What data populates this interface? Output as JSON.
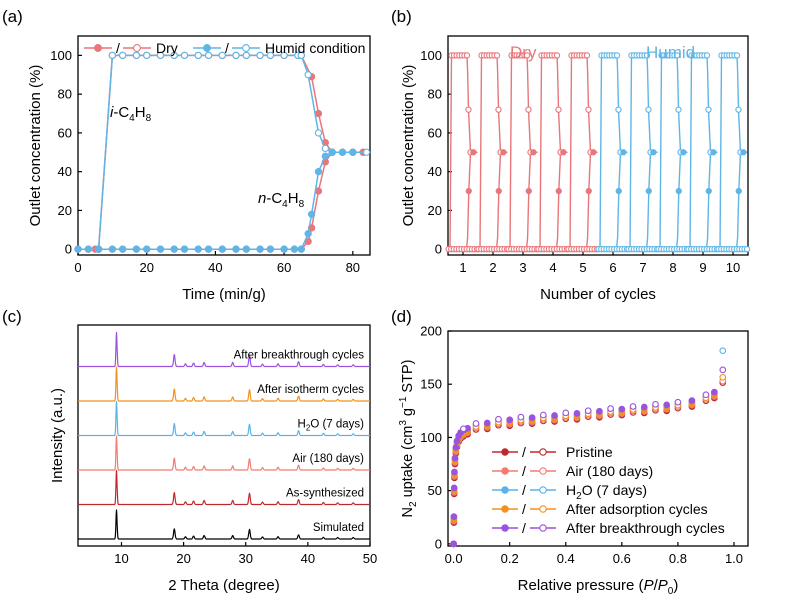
{
  "colors": {
    "dry": "#e8767a",
    "dry_dark": "#e06068",
    "humid": "#5fb5e6",
    "humid_dark": "#3a9bd8",
    "pristine": "#c0282e",
    "air": "#f07c72",
    "h2o": "#57b3ea",
    "adsorption": "#f0921e",
    "breakthrough": "#9a52e0",
    "simulated": "#000000"
  },
  "panel_labels": {
    "a": "(a)",
    "b": "(b)",
    "c": "(c)",
    "d": "(d)"
  },
  "chart_data": [
    {
      "id": "a",
      "type": "line",
      "xlabel": "Time (min/g)",
      "ylabel": "Outlet concentration (%)",
      "xlim": [
        0,
        85
      ],
      "ylim": [
        -3,
        110
      ],
      "xticks": [
        0,
        20,
        40,
        60,
        80
      ],
      "yticks": [
        0,
        20,
        40,
        60,
        80,
        100
      ],
      "legend": {
        "placement": "top",
        "slash": "/",
        "entries": [
          "Dry",
          "Humid condition"
        ]
      },
      "annotations": [
        {
          "prefix": "i",
          "main": "-C",
          "sub1": "4",
          "mid": "H",
          "sub2": "8"
        },
        {
          "prefix": "n",
          "main": "-C",
          "sub1": "4",
          "mid": "H",
          "sub2": "8"
        }
      ],
      "series": [
        {
          "name": "Dry",
          "gas": "i-C4H8",
          "color_key": "dry",
          "marker": "filled",
          "points": [
            [
              0,
              0
            ],
            [
              5,
              0
            ],
            [
              6,
              0
            ],
            [
              10,
              100
            ],
            [
              13,
              100
            ],
            [
              17,
              100
            ],
            [
              20,
              100
            ],
            [
              24,
              100
            ],
            [
              28,
              100
            ],
            [
              31,
              100
            ],
            [
              35,
              100
            ],
            [
              38,
              100
            ],
            [
              42,
              100
            ],
            [
              46,
              100
            ],
            [
              49,
              100
            ],
            [
              53,
              100
            ],
            [
              56,
              100
            ],
            [
              60,
              100
            ],
            [
              64,
              100
            ],
            [
              65,
              100
            ],
            [
              68,
              89
            ],
            [
              70,
              70
            ],
            [
              72,
              55
            ],
            [
              74,
              50
            ],
            [
              77,
              50
            ],
            [
              80,
              50
            ],
            [
              83,
              50
            ]
          ]
        },
        {
          "name": "Dry",
          "gas": "n-C4H8",
          "color_key": "dry",
          "marker": "filled",
          "points": [
            [
              0,
              0
            ],
            [
              3,
              0
            ],
            [
              6,
              0
            ],
            [
              10,
              0
            ],
            [
              13,
              0
            ],
            [
              17,
              0
            ],
            [
              20,
              0
            ],
            [
              24,
              0
            ],
            [
              28,
              0
            ],
            [
              31,
              0
            ],
            [
              35,
              0
            ],
            [
              38,
              0
            ],
            [
              42,
              0
            ],
            [
              46,
              0
            ],
            [
              49,
              0
            ],
            [
              53,
              0
            ],
            [
              56,
              0
            ],
            [
              60,
              0
            ],
            [
              63,
              0
            ],
            [
              65,
              0
            ],
            [
              67,
              4
            ],
            [
              68,
              11
            ],
            [
              70,
              30
            ],
            [
              72,
              45
            ],
            [
              74,
              50
            ],
            [
              77,
              50
            ],
            [
              80,
              50
            ],
            [
              83,
              50
            ]
          ]
        },
        {
          "name": "Humid condition",
          "gas": "i-C4H8",
          "color_key": "humid",
          "marker": "open",
          "points": [
            [
              0,
              0
            ],
            [
              6,
              0
            ],
            [
              10,
              100
            ],
            [
              13,
              100
            ],
            [
              17,
              100
            ],
            [
              20,
              100
            ],
            [
              24,
              100
            ],
            [
              28,
              100
            ],
            [
              31,
              100
            ],
            [
              35,
              100
            ],
            [
              38,
              100
            ],
            [
              42,
              100
            ],
            [
              46,
              100
            ],
            [
              49,
              100
            ],
            [
              53,
              100
            ],
            [
              56,
              100
            ],
            [
              60,
              100
            ],
            [
              64,
              100
            ],
            [
              65,
              100
            ],
            [
              67,
              90
            ],
            [
              70,
              60
            ],
            [
              72,
              52
            ],
            [
              74,
              50
            ],
            [
              77,
              50
            ],
            [
              80,
              50
            ],
            [
              84,
              50
            ]
          ]
        },
        {
          "name": "Humid condition",
          "gas": "n-C4H8",
          "color_key": "humid",
          "marker": "filled",
          "points": [
            [
              0,
              0
            ],
            [
              3,
              0
            ],
            [
              6,
              0
            ],
            [
              10,
              0
            ],
            [
              13,
              0
            ],
            [
              17,
              0
            ],
            [
              20,
              0
            ],
            [
              24,
              0
            ],
            [
              28,
              0
            ],
            [
              31,
              0
            ],
            [
              35,
              0
            ],
            [
              38,
              0
            ],
            [
              42,
              0
            ],
            [
              46,
              0
            ],
            [
              49,
              0
            ],
            [
              53,
              0
            ],
            [
              56,
              0
            ],
            [
              60,
              0
            ],
            [
              63,
              0
            ],
            [
              65,
              0
            ],
            [
              67,
              8
            ],
            [
              68,
              18
            ],
            [
              70,
              40
            ],
            [
              72,
              48
            ],
            [
              74,
              50
            ],
            [
              77,
              50
            ],
            [
              80,
              50
            ]
          ]
        }
      ]
    },
    {
      "id": "b",
      "type": "line",
      "xlabel": "Number of cycles",
      "ylabel": "Outlet concentration (%)",
      "xlim": [
        0.5,
        10.5
      ],
      "ylim": [
        -3,
        110
      ],
      "xticks": [
        1,
        2,
        3,
        4,
        5,
        6,
        7,
        8,
        9,
        10
      ],
      "yticks": [
        0,
        20,
        40,
        60,
        80,
        100
      ],
      "labels": [
        {
          "text": "Dry",
          "color_key": "dry"
        },
        {
          "text": "Humid",
          "color_key": "humid"
        }
      ],
      "cycle_profile": {
        "rise_start": 0.05,
        "rise_end": 0.1,
        "plateau_end": 0.64,
        "cross": 0.76,
        "fall_i_end": 0.88,
        "rise_n_start": 0.62,
        "plateau_pct": 100,
        "cross_pct": 50
      },
      "series": [
        {
          "name": "Dry",
          "cycles": [
            1,
            2,
            3,
            4,
            5
          ],
          "color_key": "dry"
        },
        {
          "name": "Humid",
          "cycles": [
            6,
            7,
            8,
            9,
            10
          ],
          "color_key": "humid"
        }
      ]
    },
    {
      "id": "c",
      "type": "line",
      "xlabel": "2 Theta (degree)",
      "ylabel": "Intensity (a.u.)",
      "xlim": [
        3,
        50
      ],
      "xticks": [
        10,
        20,
        30,
        40,
        50
      ],
      "peaks": [
        {
          "two_theta": 9.2,
          "rel": 1.0
        },
        {
          "two_theta": 18.5,
          "rel": 0.35
        },
        {
          "two_theta": 20.3,
          "rel": 0.08
        },
        {
          "two_theta": 21.6,
          "rel": 0.1
        },
        {
          "two_theta": 23.3,
          "rel": 0.12
        },
        {
          "two_theta": 27.9,
          "rel": 0.12
        },
        {
          "two_theta": 30.6,
          "rel": 0.33
        },
        {
          "two_theta": 32.7,
          "rel": 0.07
        },
        {
          "two_theta": 35.2,
          "rel": 0.08
        },
        {
          "two_theta": 38.5,
          "rel": 0.14
        },
        {
          "two_theta": 42.5,
          "rel": 0.06
        },
        {
          "two_theta": 44.8,
          "rel": 0.05
        },
        {
          "two_theta": 47.3,
          "rel": 0.05
        }
      ],
      "series": [
        {
          "name": "Simulated",
          "color_key": "simulated"
        },
        {
          "name": "As-synthesized",
          "color_key": "pristine"
        },
        {
          "name": "Air (180 days)",
          "color_key": "air"
        },
        {
          "name": "H2O (7 days)",
          "display_main": "H",
          "display_sub": "2",
          "display_rest": "O (7 days)",
          "color_key": "h2o"
        },
        {
          "name": "After isotherm cycles",
          "color_key": "adsorption"
        },
        {
          "name": "After breakthrough cycles",
          "color_key": "breakthrough"
        }
      ]
    },
    {
      "id": "d",
      "type": "scatter",
      "xlabel_parts": {
        "pre": "Relative pressure (",
        "italic_p": "P",
        "slash": "/",
        "italic_p0": "P",
        "sub0": "0",
        "post": ")"
      },
      "ylabel_parts": {
        "n": "N",
        "sub2": "2",
        "mid": " uptake (cm",
        "sup3": "3",
        "g": " g",
        "supm1": "−1",
        "post": " STP)"
      },
      "xlim": [
        -0.02,
        1.05
      ],
      "ylim": [
        -2,
        200
      ],
      "xticks": [
        0.0,
        0.2,
        0.4,
        0.6,
        0.8,
        1.0
      ],
      "xtick_labels": [
        "0.0",
        "0.2",
        "0.4",
        "0.6",
        "0.8",
        "1.0"
      ],
      "yticks": [
        0,
        50,
        100,
        150,
        200
      ],
      "legend": {
        "placement": "bottom-right",
        "slash": "/"
      },
      "series": [
        {
          "name": "Pristine",
          "color_key": "pristine",
          "offset": 0
        },
        {
          "name": "Air (180 days)",
          "color_key": "air",
          "offset": 1
        },
        {
          "name": "H2O (7 days)",
          "display_main": "H",
          "display_sub": "2",
          "display_rest": "O (7 days)",
          "color_key": "h2o",
          "offset": 3,
          "last": 180
        },
        {
          "name": "After adsorption cycles",
          "color_key": "adsorption",
          "offset": 2,
          "last": 155
        },
        {
          "name": "After breakthrough cycles",
          "color_key": "breakthrough",
          "offset": 4,
          "last": 162
        }
      ],
      "isotherm": [
        [
          0.0,
          0
        ],
        [
          0.001,
          20
        ],
        [
          0.002,
          47
        ],
        [
          0.003,
          62
        ],
        [
          0.005,
          75
        ],
        [
          0.008,
          85
        ],
        [
          0.012,
          91
        ],
        [
          0.018,
          96
        ],
        [
          0.025,
          99
        ],
        [
          0.035,
          101
        ],
        [
          0.05,
          103
        ],
        [
          0.08,
          106
        ],
        [
          0.12,
          108
        ],
        [
          0.16,
          110
        ],
        [
          0.2,
          111
        ],
        [
          0.24,
          112
        ],
        [
          0.28,
          113
        ],
        [
          0.32,
          114
        ],
        [
          0.36,
          115
        ],
        [
          0.4,
          116
        ],
        [
          0.44,
          117
        ],
        [
          0.48,
          118
        ],
        [
          0.52,
          119
        ],
        [
          0.56,
          120
        ],
        [
          0.6,
          121
        ],
        [
          0.64,
          122
        ],
        [
          0.68,
          123
        ],
        [
          0.72,
          124
        ],
        [
          0.76,
          125
        ],
        [
          0.8,
          126
        ],
        [
          0.85,
          129
        ],
        [
          0.9,
          133
        ],
        [
          0.93,
          137
        ],
        [
          0.96,
          150
        ]
      ]
    }
  ]
}
